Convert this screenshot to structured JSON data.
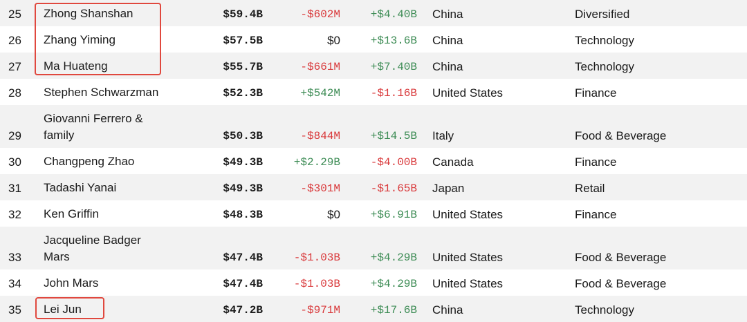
{
  "rows": [
    {
      "rank": "25",
      "name": [
        "Zhong Shanshan"
      ],
      "worth": "$59.4B",
      "change": "-$602M",
      "change_sign": "neg",
      "ytd": "+$4.40B",
      "ytd_sign": "pos",
      "country": "China",
      "industry": "Diversified"
    },
    {
      "rank": "26",
      "name": [
        "Zhang Yiming"
      ],
      "worth": "$57.5B",
      "change": "$0",
      "change_sign": "zero",
      "ytd": "+$13.6B",
      "ytd_sign": "pos",
      "country": "China",
      "industry": "Technology"
    },
    {
      "rank": "27",
      "name": [
        "Ma Huateng"
      ],
      "worth": "$55.7B",
      "change": "-$661M",
      "change_sign": "neg",
      "ytd": "+$7.40B",
      "ytd_sign": "pos",
      "country": "China",
      "industry": "Technology"
    },
    {
      "rank": "28",
      "name": [
        "Stephen Schwarzman"
      ],
      "worth": "$52.3B",
      "change": "+$542M",
      "change_sign": "pos",
      "ytd": "-$1.16B",
      "ytd_sign": "neg",
      "country": "United States",
      "industry": "Finance"
    },
    {
      "rank": "29",
      "name": [
        "Giovanni Ferrero &",
        "family"
      ],
      "worth": "$50.3B",
      "change": "-$844M",
      "change_sign": "neg",
      "ytd": "+$14.5B",
      "ytd_sign": "pos",
      "country": "Italy",
      "industry": "Food & Beverage"
    },
    {
      "rank": "30",
      "name": [
        "Changpeng Zhao"
      ],
      "worth": "$49.3B",
      "change": "+$2.29B",
      "change_sign": "pos",
      "ytd": "-$4.00B",
      "ytd_sign": "neg",
      "country": "Canada",
      "industry": "Finance"
    },
    {
      "rank": "31",
      "name": [
        "Tadashi Yanai"
      ],
      "worth": "$49.3B",
      "change": "-$301M",
      "change_sign": "neg",
      "ytd": "-$1.65B",
      "ytd_sign": "neg",
      "country": "Japan",
      "industry": "Retail"
    },
    {
      "rank": "32",
      "name": [
        "Ken Griffin"
      ],
      "worth": "$48.3B",
      "change": "$0",
      "change_sign": "zero",
      "ytd": "+$6.91B",
      "ytd_sign": "pos",
      "country": "United States",
      "industry": "Finance"
    },
    {
      "rank": "33",
      "name": [
        "Jacqueline Badger",
        "Mars"
      ],
      "worth": "$47.4B",
      "change": "-$1.03B",
      "change_sign": "neg",
      "ytd": "+$4.29B",
      "ytd_sign": "pos",
      "country": "United States",
      "industry": "Food & Beverage"
    },
    {
      "rank": "34",
      "name": [
        "John Mars"
      ],
      "worth": "$47.4B",
      "change": "-$1.03B",
      "change_sign": "neg",
      "ytd": "+$4.29B",
      "ytd_sign": "pos",
      "country": "United States",
      "industry": "Food & Beverage"
    },
    {
      "rank": "35",
      "name": [
        "Lei Jun"
      ],
      "worth": "$47.2B",
      "change": "-$971M",
      "change_sign": "neg",
      "ytd": "+$17.6B",
      "ytd_sign": "pos",
      "country": "China",
      "industry": "Technology"
    }
  ],
  "colors": {
    "negative": "#d9393b",
    "positive": "#3d8c55",
    "highlight": "#e0483e",
    "stripe": "#f2f2f2"
  }
}
